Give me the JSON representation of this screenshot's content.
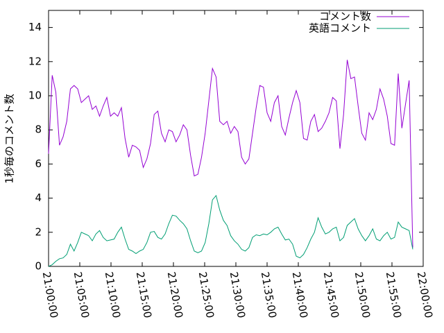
{
  "chart_data": {
    "type": "line",
    "y_label": "1秒毎のコメント数",
    "x": [
      "21:00:00",
      "21:00:35",
      "21:01:10",
      "21:01:45",
      "21:02:20",
      "21:02:55",
      "21:03:30",
      "21:04:05",
      "21:04:40",
      "21:05:15",
      "21:05:50",
      "21:06:25",
      "21:07:00",
      "21:07:35",
      "21:08:10",
      "21:08:45",
      "21:09:20",
      "21:09:55",
      "21:10:30",
      "21:11:05",
      "21:11:40",
      "21:12:15",
      "21:12:50",
      "21:13:25",
      "21:14:00",
      "21:14:35",
      "21:15:10",
      "21:15:45",
      "21:16:20",
      "21:16:55",
      "21:17:30",
      "21:18:05",
      "21:18:40",
      "21:19:15",
      "21:19:50",
      "21:20:25",
      "21:21:00",
      "21:21:35",
      "21:22:10",
      "21:22:45",
      "21:23:20",
      "21:23:55",
      "21:24:30",
      "21:25:05",
      "21:25:40",
      "21:26:15",
      "21:26:50",
      "21:27:25",
      "21:28:00",
      "21:28:35",
      "21:29:10",
      "21:29:45",
      "21:30:20",
      "21:30:55",
      "21:31:30",
      "21:32:05",
      "21:32:40",
      "21:33:15",
      "21:33:50",
      "21:34:25",
      "21:35:00",
      "21:35:35",
      "21:36:10",
      "21:36:45",
      "21:37:20",
      "21:37:55",
      "21:38:30",
      "21:39:05",
      "21:39:40",
      "21:40:15",
      "21:40:50",
      "21:41:25",
      "21:42:00",
      "21:42:35",
      "21:43:10",
      "21:43:45",
      "21:44:20",
      "21:44:55",
      "21:45:30",
      "21:46:05",
      "21:46:40",
      "21:47:15",
      "21:47:50",
      "21:48:25",
      "21:49:00",
      "21:49:35",
      "21:50:10",
      "21:50:45",
      "21:51:20",
      "21:51:55",
      "21:52:30",
      "21:53:05",
      "21:53:40",
      "21:54:15",
      "21:54:50",
      "21:55:25",
      "21:56:00",
      "21:56:35",
      "21:57:10",
      "21:57:45",
      "21:58:20"
    ],
    "series": [
      {
        "name": "コメント数",
        "color": "#9400d3",
        "values": [
          6.6,
          11.2,
          10.2,
          7.1,
          7.6,
          8.5,
          10.4,
          10.6,
          10.4,
          9.6,
          9.8,
          10.0,
          9.2,
          9.4,
          8.8,
          9.4,
          9.9,
          8.8,
          9.0,
          8.8,
          9.3,
          7.5,
          6.4,
          7.1,
          7.0,
          6.8,
          5.8,
          6.3,
          7.2,
          8.9,
          9.1,
          7.8,
          7.3,
          8.0,
          7.9,
          7.3,
          7.7,
          8.3,
          8.0,
          6.5,
          5.3,
          5.4,
          6.4,
          7.8,
          9.7,
          11.6,
          11.1,
          8.5,
          8.3,
          8.5,
          7.8,
          8.2,
          7.9,
          6.4,
          6.0,
          6.3,
          7.8,
          9.3,
          10.6,
          10.5,
          9.0,
          8.5,
          9.6,
          10.0,
          8.2,
          7.7,
          8.7,
          9.6,
          10.3,
          9.6,
          7.5,
          7.4,
          8.5,
          8.9,
          7.9,
          8.1,
          8.5,
          9.0,
          9.9,
          9.7,
          6.9,
          8.9,
          12.1,
          11.0,
          11.1,
          9.4,
          7.8,
          7.4,
          9.0,
          8.6,
          9.2,
          10.4,
          9.8,
          8.8,
          7.2,
          7.1,
          11.3,
          8.1,
          9.5,
          10.9,
          1.1
        ]
      },
      {
        "name": "英語コメント",
        "color": "#009e73",
        "values": [
          0.0,
          0.1,
          0.3,
          0.45,
          0.5,
          0.7,
          1.3,
          0.9,
          1.4,
          2.0,
          1.9,
          1.8,
          1.5,
          1.9,
          2.1,
          1.7,
          1.5,
          1.55,
          1.6,
          2.0,
          2.3,
          1.6,
          1.0,
          0.9,
          0.75,
          0.9,
          1.0,
          1.4,
          2.0,
          2.05,
          1.7,
          1.6,
          1.9,
          2.5,
          3.0,
          2.95,
          2.7,
          2.5,
          2.2,
          1.5,
          0.9,
          0.8,
          0.9,
          1.4,
          2.5,
          3.9,
          4.15,
          3.3,
          2.7,
          2.4,
          1.8,
          1.5,
          1.3,
          1.0,
          0.9,
          1.1,
          1.7,
          1.85,
          1.8,
          1.9,
          1.85,
          2.0,
          2.2,
          2.3,
          1.9,
          1.55,
          1.6,
          1.3,
          0.6,
          0.5,
          0.7,
          1.1,
          1.6,
          2.0,
          2.85,
          2.3,
          1.9,
          2.0,
          2.2,
          2.3,
          1.5,
          1.7,
          2.4,
          2.6,
          2.8,
          2.2,
          1.8,
          1.5,
          1.8,
          2.2,
          1.6,
          1.5,
          1.8,
          2.0,
          1.6,
          1.7,
          2.6,
          2.3,
          2.2,
          2.1,
          1.0
        ]
      }
    ],
    "xlim": [
      "21:00:00",
      "22:00:00"
    ],
    "xticks": [
      "21:00:00",
      "21:05:00",
      "21:10:00",
      "21:15:00",
      "21:20:00",
      "21:25:00",
      "21:30:00",
      "21:35:00",
      "21:40:00",
      "21:45:00",
      "21:50:00",
      "21:55:00",
      "22:00:00"
    ],
    "ylim": [
      0,
      15
    ],
    "yticks": [
      0,
      2,
      4,
      6,
      8,
      10,
      12,
      14
    ],
    "legend": "top-right"
  }
}
